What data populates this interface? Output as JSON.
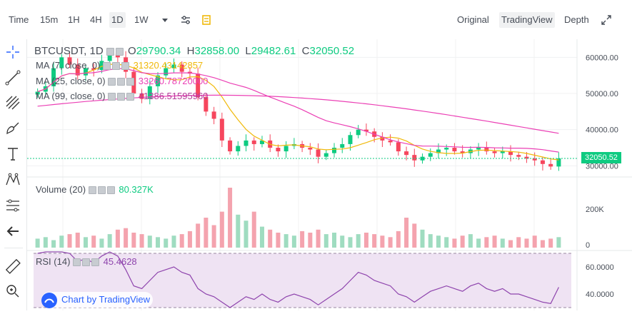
{
  "toolbar": {
    "time_label": "Time",
    "intervals": [
      "15m",
      "1H",
      "4H",
      "1D",
      "1W"
    ],
    "active_interval": "1D",
    "views": [
      "Original",
      "TradingView",
      "Depth"
    ],
    "active_view": "TradingView"
  },
  "legend": {
    "symbol": "BTCUSDT",
    "interval": "1D",
    "open_label": "O",
    "open": "29790.34",
    "high_label": "H",
    "high": "32858.00",
    "low_label": "L",
    "low": "29482.61",
    "close_label": "C",
    "close": "32050.52",
    "ma1_label": "MA (7, close, 0)",
    "ma1_value": "31320.43142857",
    "ma2_label": "MA (25, close, 0)",
    "ma2_value": "33260.78720000",
    "ma3_label": "MA (99, close, 0)",
    "ma3_value": "41386.51595960",
    "volume_label": "Volume (20)",
    "volume_value": "80.327K",
    "rsi_label": "RSI (14)",
    "rsi_value": "45.4628"
  },
  "price_axis": [
    "60000.00",
    "50000.00",
    "40000.00",
    "30000.00"
  ],
  "last_price": "32050.52",
  "volume_axis": [
    "200K",
    "0"
  ],
  "rsi_axis": [
    "60.0000",
    "40.0000"
  ],
  "watermark": "Chart by TradingView",
  "colors": {
    "up": "#0ecb81",
    "down": "#f6465d",
    "up_light": "#9fdcc0",
    "down_light": "#f4a3ae",
    "ma7": "#f0b90b",
    "ma25": "#eb40b5",
    "ma99": "#b53a9a",
    "rsi": "#8e44ad"
  },
  "chart_data": {
    "type": "candlestick",
    "y_axis_ticks": [
      30000,
      40000,
      50000,
      60000
    ],
    "ylim": [
      27500,
      65000
    ],
    "last_close": 32050.52
  }
}
